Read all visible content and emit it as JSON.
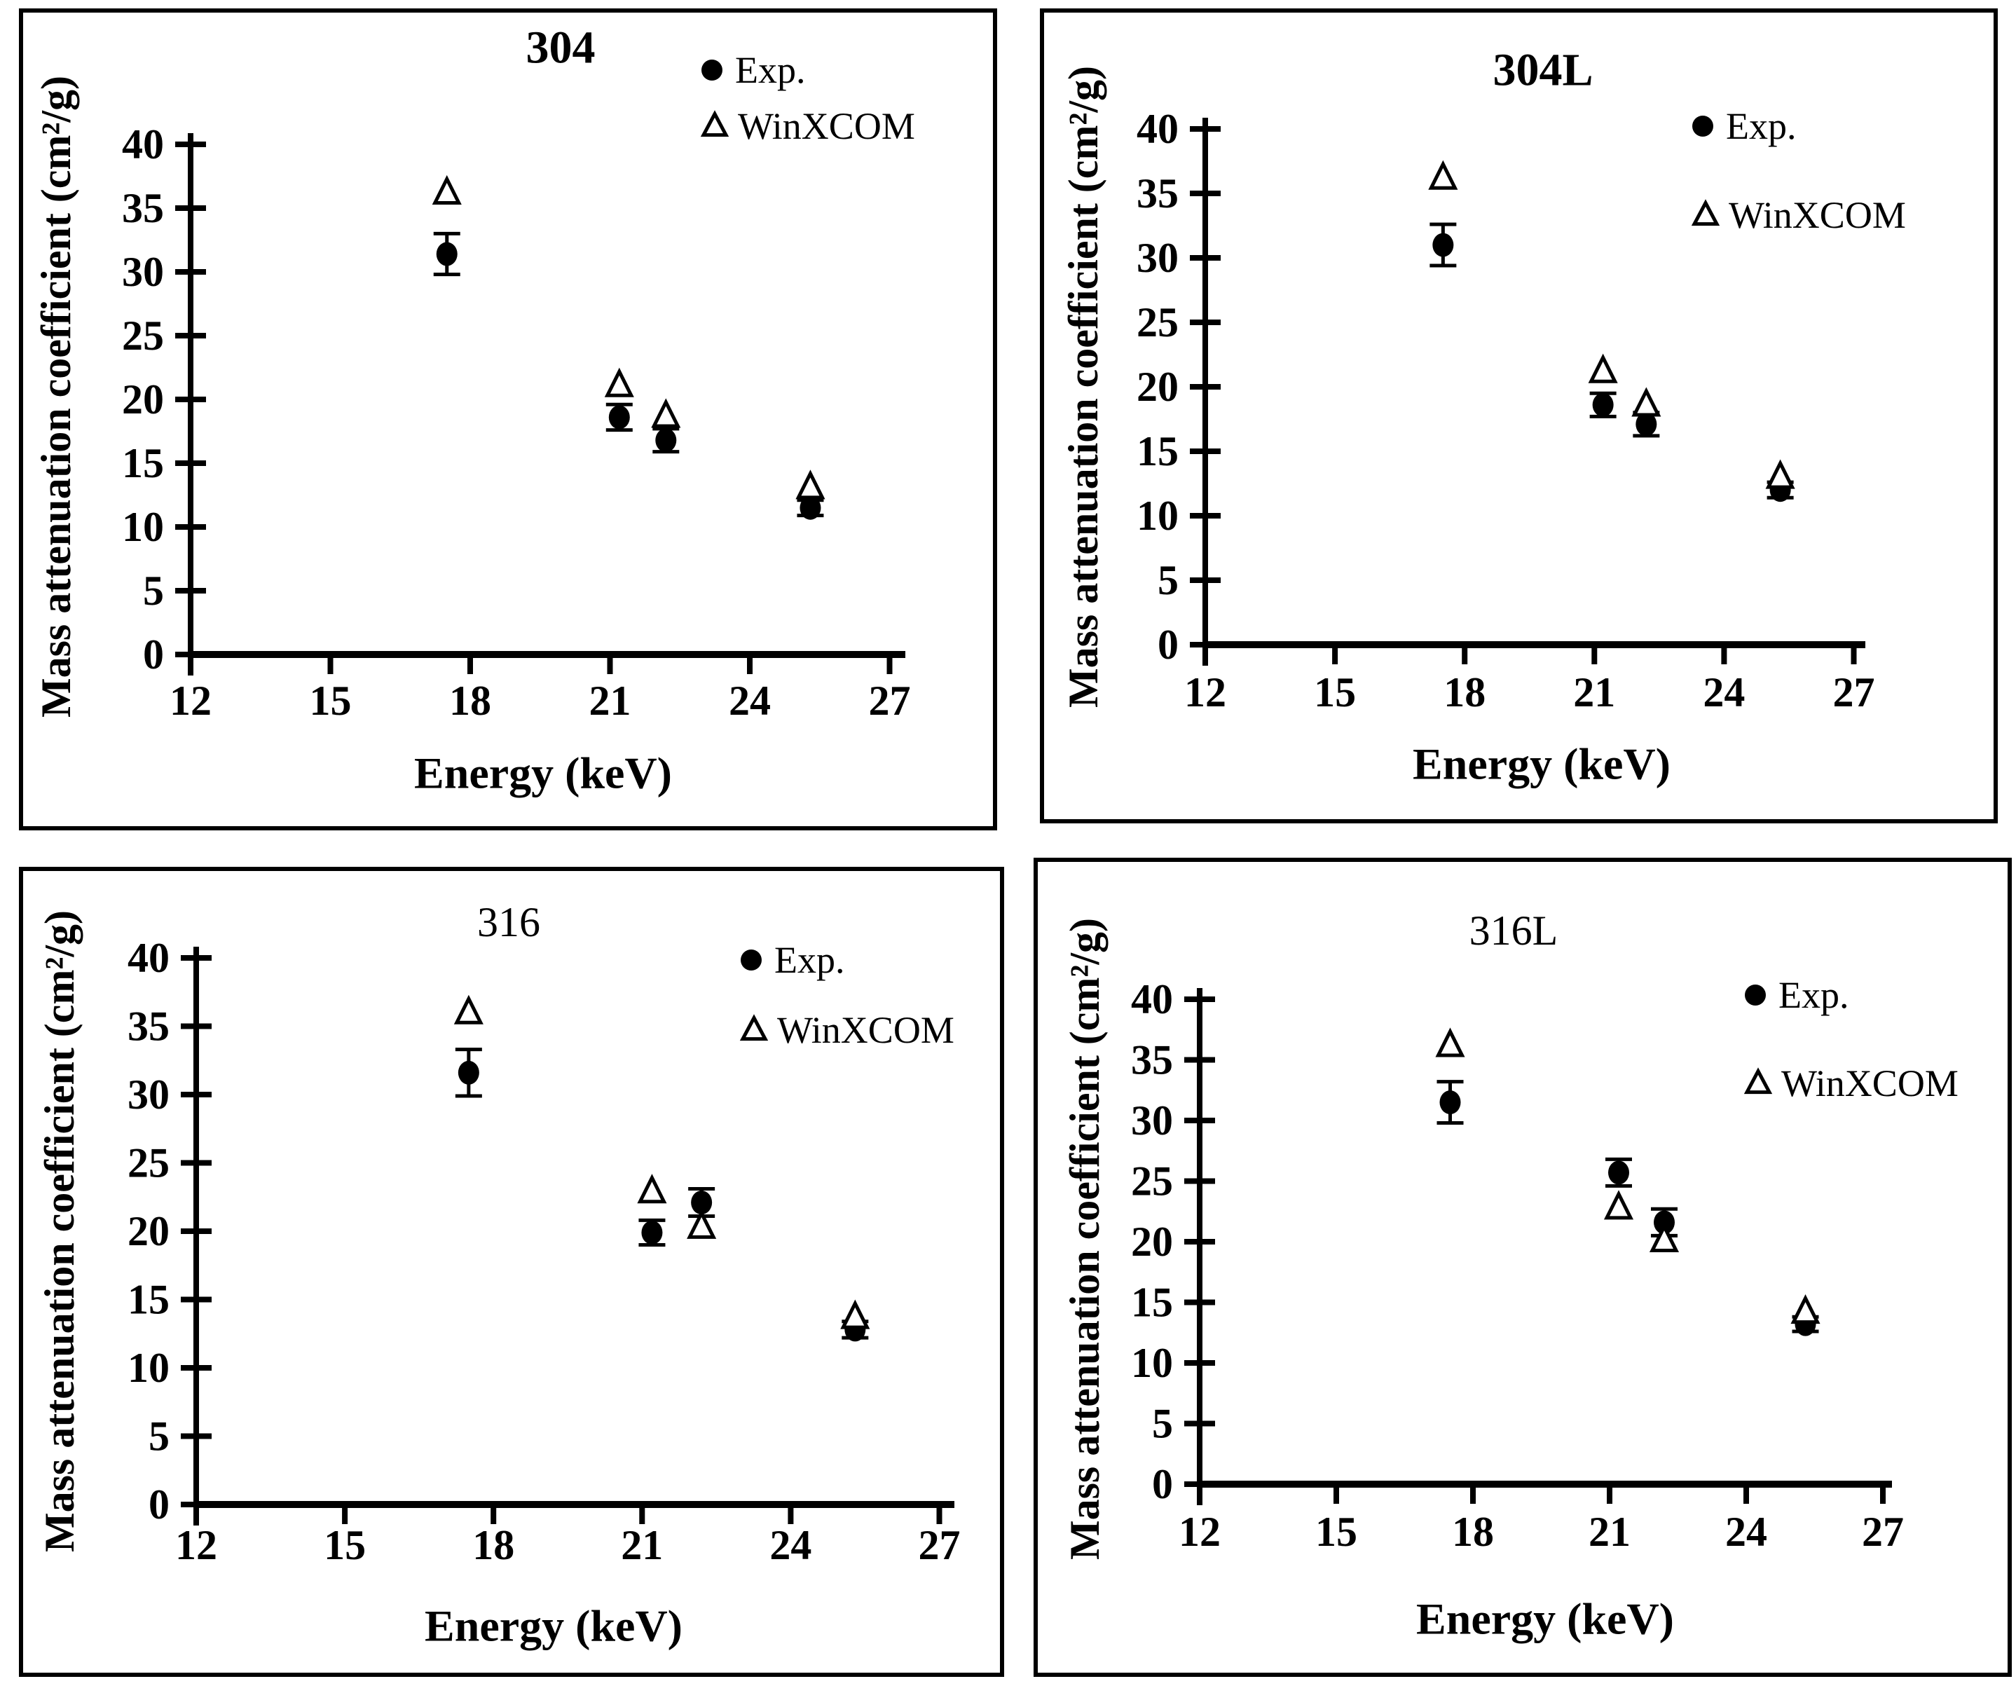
{
  "figure": {
    "background": "#ffffff",
    "ink": "#000000",
    "description_elements": {
      "x_axis_title": "Energy (keV)",
      "y_axis_title": "Mass attenuation coefficient (cm²/g)"
    }
  },
  "shared": {
    "xlabel": "Energy (keV)",
    "ylabel": "Mass attenuation coefficient (cm²/g)",
    "legend": [
      {
        "label": "Exp.",
        "marker": "filled-circle-icon"
      },
      {
        "label": "WinXCOM",
        "marker": "open-triangle-icon"
      }
    ],
    "xticks": [
      12,
      15,
      18,
      21,
      24,
      27
    ],
    "yticks": [
      0,
      5,
      10,
      15,
      20,
      25,
      30,
      35,
      40
    ],
    "xlim": [
      12,
      27
    ],
    "ylim": [
      0,
      40
    ],
    "grid": false,
    "legend_position": "top-right"
  },
  "chart_data": [
    {
      "type": "scatter",
      "title": "304",
      "xlabel": "Energy (keV)",
      "ylabel": "Mass attenuation coefficient (cm²/g)",
      "xlim": [
        12,
        27
      ],
      "ylim": [
        0,
        40
      ],
      "xticks": [
        12,
        15,
        18,
        21,
        24,
        27
      ],
      "yticks": [
        0,
        5,
        10,
        15,
        20,
        25,
        30,
        35,
        40
      ],
      "x": [
        17.5,
        21.2,
        22.2,
        25.3
      ],
      "series": [
        {
          "name": "Exp.",
          "marker": "filled-circle",
          "values": [
            31.4,
            18.6,
            16.8,
            11.5
          ],
          "yerr": [
            1.6,
            1.0,
            0.9,
            0.6
          ]
        },
        {
          "name": "WinXCOM",
          "marker": "open-triangle",
          "values": [
            36.2,
            21.1,
            18.7,
            13.1
          ]
        }
      ]
    },
    {
      "type": "scatter",
      "title": "304L",
      "xlabel": "Energy (keV)",
      "ylabel": "Mass attenuation coefficient (cm²/g)",
      "xlim": [
        12,
        27
      ],
      "ylim": [
        0,
        40
      ],
      "xticks": [
        12,
        15,
        18,
        21,
        24,
        27
      ],
      "yticks": [
        0,
        5,
        10,
        15,
        20,
        25,
        30,
        35,
        40
      ],
      "x": [
        17.5,
        21.2,
        22.2,
        25.3
      ],
      "series": [
        {
          "name": "Exp.",
          "marker": "filled-circle",
          "values": [
            31.0,
            18.6,
            17.1,
            12.0
          ],
          "yerr": [
            1.6,
            0.9,
            0.9,
            0.6
          ]
        },
        {
          "name": "WinXCOM",
          "marker": "open-triangle",
          "values": [
            36.2,
            21.2,
            18.6,
            13.0
          ]
        }
      ]
    },
    {
      "type": "scatter",
      "title": "316",
      "xlabel": "Energy (keV)",
      "ylabel": "Mass attenuation coefficient (cm²/g)",
      "xlim": [
        12,
        27
      ],
      "ylim": [
        0,
        40
      ],
      "xticks": [
        12,
        15,
        18,
        21,
        24,
        27
      ],
      "yticks": [
        0,
        5,
        10,
        15,
        20,
        25,
        30,
        35,
        40
      ],
      "x": [
        17.5,
        21.2,
        22.2,
        25.3
      ],
      "series": [
        {
          "name": "Exp.",
          "marker": "filled-circle",
          "values": [
            31.6,
            19.9,
            22.1,
            12.8
          ],
          "yerr": [
            1.7,
            0.9,
            1.0,
            0.6
          ]
        },
        {
          "name": "WinXCOM",
          "marker": "open-triangle",
          "values": [
            36.0,
            22.9,
            20.3,
            13.7
          ]
        }
      ]
    },
    {
      "type": "scatter",
      "title": "316L",
      "xlabel": "Energy (keV)",
      "ylabel": "Mass attenuation coefficient (cm²/g)",
      "xlim": [
        12,
        27
      ],
      "ylim": [
        0,
        40
      ],
      "xticks": [
        12,
        15,
        18,
        21,
        24,
        27
      ],
      "yticks": [
        0,
        5,
        10,
        15,
        20,
        25,
        30,
        35,
        40
      ],
      "x": [
        17.5,
        21.2,
        22.2,
        25.3
      ],
      "series": [
        {
          "name": "Exp.",
          "marker": "filled-circle",
          "values": [
            31.5,
            25.7,
            21.6,
            13.2
          ],
          "yerr": [
            1.7,
            1.1,
            1.1,
            0.6
          ]
        },
        {
          "name": "WinXCOM",
          "marker": "open-triangle",
          "values": [
            36.2,
            22.8,
            20.1,
            14.2
          ]
        }
      ]
    }
  ]
}
